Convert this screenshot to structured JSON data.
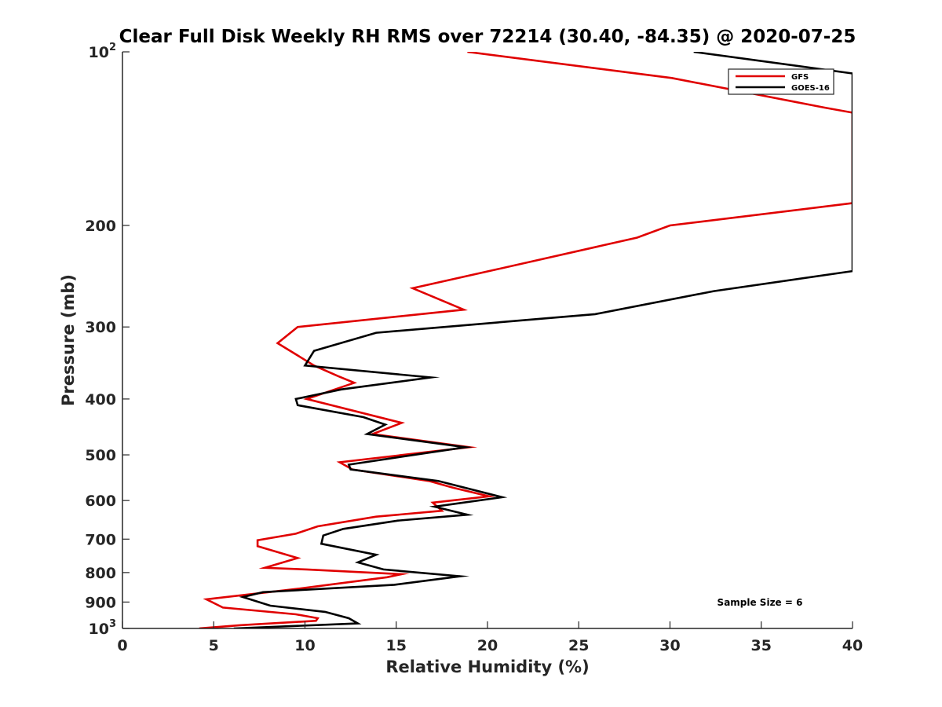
{
  "chart_data": {
    "type": "line",
    "title": "Clear Full Disk Weekly RH RMS over 72214 (30.40, -84.35) @ 2020-07-25",
    "xlabel": "Relative Humidity (%)",
    "ylabel": "Pressure (mb)",
    "xlim": [
      0,
      40
    ],
    "ylim": [
      100,
      1000
    ],
    "y_scale": "log",
    "y_reversed": true,
    "x_ticks": [
      0,
      5,
      10,
      15,
      20,
      25,
      30,
      35,
      40
    ],
    "x_tick_labels": [
      "0",
      "5",
      "10",
      "15",
      "20",
      "25",
      "30",
      "35",
      "40"
    ],
    "y_ticks": [
      {
        "value": 100,
        "label": "10",
        "sup": "2"
      },
      {
        "value": 200,
        "label": "200",
        "sup": ""
      },
      {
        "value": 300,
        "label": "300",
        "sup": ""
      },
      {
        "value": 400,
        "label": "400",
        "sup": ""
      },
      {
        "value": 500,
        "label": "500",
        "sup": ""
      },
      {
        "value": 600,
        "label": "600",
        "sup": ""
      },
      {
        "value": 700,
        "label": "700",
        "sup": ""
      },
      {
        "value": 800,
        "label": "800",
        "sup": ""
      },
      {
        "value": 900,
        "label": "900",
        "sup": ""
      },
      {
        "value": 1000,
        "label": "10",
        "sup": "3"
      }
    ],
    "grid": false,
    "legend_position": "top-right",
    "annotation": "Sample Size = 6",
    "series": [
      {
        "name": "GFS",
        "color": "#e00000",
        "points": [
          [
            18.9,
            100
          ],
          [
            30.1,
            111
          ],
          [
            38.5,
            125
          ],
          [
            40.0,
            127.5
          ],
          [
            40.0,
            183
          ],
          [
            30.0,
            200
          ],
          [
            28.2,
            210
          ],
          [
            20.6,
            238
          ],
          [
            15.9,
            257
          ],
          [
            18.7,
            280
          ],
          [
            9.6,
            300
          ],
          [
            8.5,
            320
          ],
          [
            10.5,
            350
          ],
          [
            11.8,
            365
          ],
          [
            12.7,
            375
          ],
          [
            10.1,
            400
          ],
          [
            15.3,
            440
          ],
          [
            13.7,
            460
          ],
          [
            19.0,
            485
          ],
          [
            11.9,
            515
          ],
          [
            12.6,
            530
          ],
          [
            16.8,
            555
          ],
          [
            18.1,
            570
          ],
          [
            20.1,
            590
          ],
          [
            17.0,
            605
          ],
          [
            17.5,
            625
          ],
          [
            13.9,
            640
          ],
          [
            10.7,
            665
          ],
          [
            9.5,
            685
          ],
          [
            7.4,
            703
          ],
          [
            7.4,
            720
          ],
          [
            9.6,
            755
          ],
          [
            7.8,
            785
          ],
          [
            10.1,
            790
          ],
          [
            15.3,
            805
          ],
          [
            14.5,
            815
          ],
          [
            9.4,
            855
          ],
          [
            4.6,
            890
          ],
          [
            5.5,
            920
          ],
          [
            9.5,
            945
          ],
          [
            10.7,
            960
          ],
          [
            10.6,
            970
          ],
          [
            6.5,
            987
          ],
          [
            4.2,
            1000
          ]
        ]
      },
      {
        "name": "GOES-16",
        "color": "#000000",
        "points": [
          [
            31.3,
            100
          ],
          [
            40.0,
            109
          ],
          [
            40.0,
            240
          ],
          [
            32.4,
            260
          ],
          [
            25.9,
            285
          ],
          [
            13.9,
            307
          ],
          [
            10.5,
            330
          ],
          [
            10.0,
            350
          ],
          [
            16.9,
            367
          ],
          [
            12.0,
            385
          ],
          [
            9.5,
            400
          ],
          [
            9.6,
            410
          ],
          [
            13.2,
            430
          ],
          [
            14.4,
            443
          ],
          [
            13.4,
            460
          ],
          [
            18.8,
            485
          ],
          [
            12.4,
            520
          ],
          [
            12.5,
            530
          ],
          [
            17.3,
            555
          ],
          [
            20.8,
            592
          ],
          [
            17.1,
            615
          ],
          [
            18.9,
            635
          ],
          [
            15.1,
            650
          ],
          [
            12.1,
            672
          ],
          [
            11.0,
            690
          ],
          [
            10.9,
            713
          ],
          [
            13.9,
            745
          ],
          [
            12.9,
            768
          ],
          [
            14.3,
            790
          ],
          [
            18.5,
            812
          ],
          [
            14.9,
            840
          ],
          [
            7.7,
            865
          ],
          [
            6.6,
            882
          ],
          [
            8.1,
            913
          ],
          [
            11.1,
            936
          ],
          [
            12.4,
            960
          ],
          [
            12.9,
            980
          ],
          [
            6.1,
            1000
          ]
        ]
      }
    ]
  }
}
